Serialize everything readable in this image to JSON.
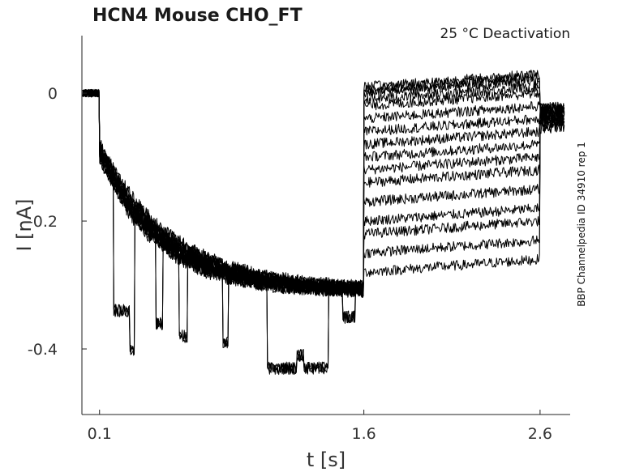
{
  "chart_data": {
    "type": "line",
    "title": "HCN4  Mouse  CHO_FT",
    "subtitle": "25 °C  Deactivation",
    "side_label": "BBP Channelpedia ID 34910 rep 1",
    "xlabel": "t [s]",
    "ylabel": "I [nA]",
    "xlim": [
      0.0,
      2.78
    ],
    "ylim": [
      -0.5,
      0.09
    ],
    "xticks": [
      0.1,
      1.6,
      2.6
    ],
    "xtick_labels": [
      "0.1",
      "1.6",
      "2.6"
    ],
    "yticks": [
      0,
      -0.2,
      -0.4
    ],
    "ytick_labels": [
      "0",
      "-0.2",
      "-0.4"
    ],
    "grid": false,
    "protocol": {
      "holding_end": 0.1,
      "activation_end": 1.6,
      "test_end": 2.6,
      "holding_level": 0.0,
      "activation_steady": -0.31,
      "tail_levels": [
        0.03,
        0.025,
        0.02,
        0.01,
        0.0,
        -0.02,
        -0.04,
        -0.06,
        -0.08,
        -0.1,
        -0.12,
        -0.15,
        -0.18,
        -0.2,
        -0.23,
        -0.26
      ]
    },
    "color": "#000000"
  }
}
